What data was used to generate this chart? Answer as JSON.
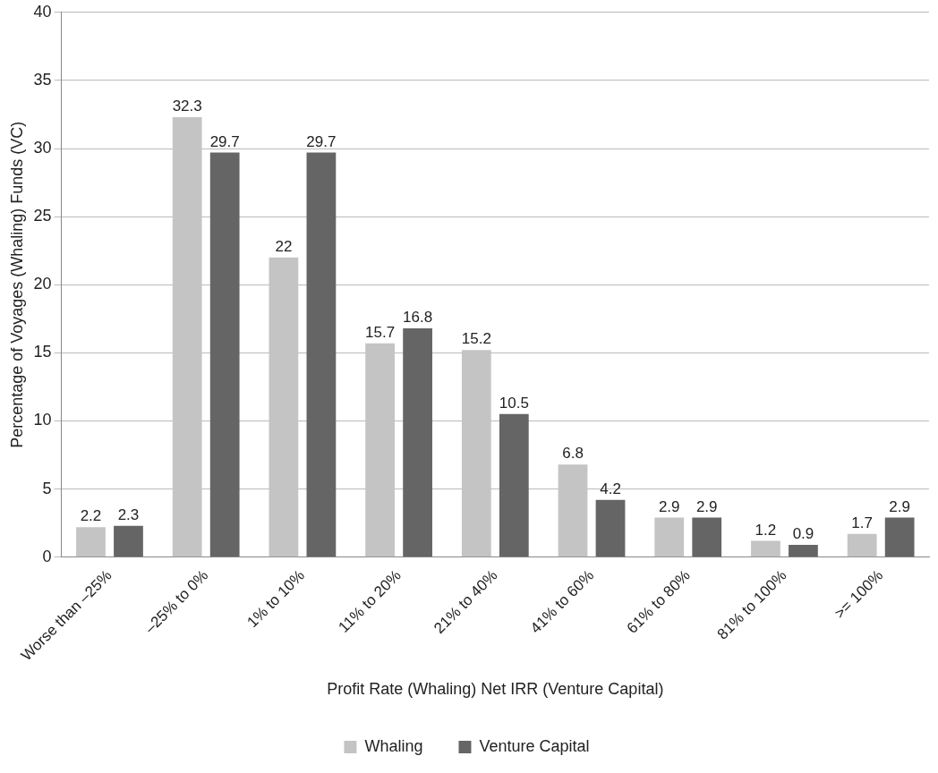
{
  "chart_data": {
    "type": "bar",
    "xlabel": "Profit Rate (Whaling) Net IRR (Venture Capital)",
    "ylabel": "Percentage of Voyages (Whaling) Funds (VC)",
    "categories": [
      "Worse than –25%",
      "–25% to 0%",
      "1% to 10%",
      "11% to 20%",
      "21% to 40%",
      "41% to 60%",
      "61% to 80%",
      "81% to 100%",
      ">= 100%"
    ],
    "series": [
      {
        "name": "Whaling",
        "color": "#c4c4c4",
        "values": [
          2.2,
          32.3,
          22,
          15.7,
          15.2,
          6.8,
          2.9,
          1.2,
          1.7
        ]
      },
      {
        "name": "Venture Capital",
        "color": "#656565",
        "values": [
          2.3,
          29.7,
          29.7,
          16.8,
          10.5,
          4.2,
          2.9,
          0.9,
          2.9
        ]
      }
    ],
    "ylim": [
      0,
      40
    ],
    "yticks": [
      0,
      5,
      10,
      15,
      20,
      25,
      30,
      35,
      40
    ],
    "grid": "y",
    "legend": "bottom",
    "data_labels": true
  }
}
